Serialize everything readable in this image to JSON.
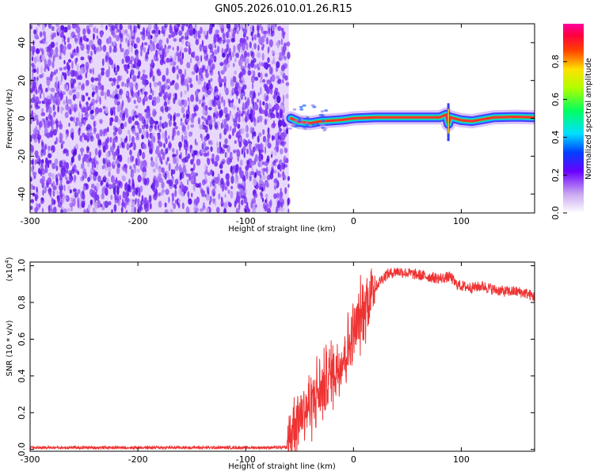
{
  "title": "GN05.2026.010.01.26.R15",
  "chart_data": [
    {
      "type": "heatmap",
      "xlabel": "Height of straight line (km)",
      "ylabel": "Frequency (Hz)",
      "xlim": [
        -300,
        168
      ],
      "ylim": [
        -50,
        50
      ],
      "xticks": [
        -300,
        -200,
        -100,
        0,
        100
      ],
      "yticks": [
        -40,
        -20,
        0,
        20,
        40
      ],
      "noise_region_x": [
        -300,
        -60
      ],
      "tone_track": {
        "x": [
          -58,
          -50,
          -40,
          -30,
          -20,
          -10,
          0,
          20,
          50,
          80,
          86,
          88,
          90,
          100,
          110,
          130,
          150,
          168
        ],
        "y": [
          0,
          -2,
          -2.5,
          -1.5,
          -1.2,
          -0.8,
          0,
          0.5,
          0.5,
          0.5,
          2,
          -3,
          0.5,
          -1,
          -1.5,
          0.5,
          0.8,
          0.5
        ]
      },
      "colorbar": {
        "label": "Normalized spectral amplitude",
        "range": [
          0,
          1
        ],
        "ticks": [
          0.0,
          0.2,
          0.4,
          0.6,
          0.8
        ]
      },
      "grid": false
    },
    {
      "type": "line",
      "xlabel": "Height of straight line (km)",
      "ylabel": "SNR (10 * v/v)",
      "y_multiplier": "(x10",
      "y_exponent": "4",
      "xlim": [
        -300,
        168
      ],
      "ylim": [
        -0.01,
        1.02
      ],
      "xticks": [
        -300,
        -200,
        -100,
        0,
        100
      ],
      "yticks": [
        0.0,
        0.2,
        0.4,
        0.6,
        0.8,
        1.0
      ],
      "series": [
        {
          "color": "#ee3333",
          "x": [
            -300,
            -250,
            -200,
            -150,
            -100,
            -62,
            -60,
            -55,
            -50,
            -45,
            -40,
            -35,
            -30,
            -25,
            -20,
            -15,
            -10,
            -5,
            0,
            5,
            10,
            15,
            20,
            25,
            30,
            35,
            40,
            50,
            60,
            70,
            80,
            90,
            95,
            100,
            110,
            120,
            130,
            140,
            150,
            160,
            168
          ],
          "y": [
            0.01,
            0.01,
            0.01,
            0.01,
            0.01,
            0.01,
            0.05,
            0.15,
            0.2,
            0.22,
            0.25,
            0.3,
            0.32,
            0.38,
            0.42,
            0.45,
            0.5,
            0.55,
            0.62,
            0.7,
            0.78,
            0.84,
            0.88,
            0.92,
            0.95,
            0.96,
            0.97,
            0.96,
            0.95,
            0.94,
            0.93,
            0.94,
            0.9,
            0.89,
            0.88,
            0.89,
            0.87,
            0.86,
            0.86,
            0.85,
            0.83
          ]
        }
      ],
      "grid": false
    }
  ]
}
